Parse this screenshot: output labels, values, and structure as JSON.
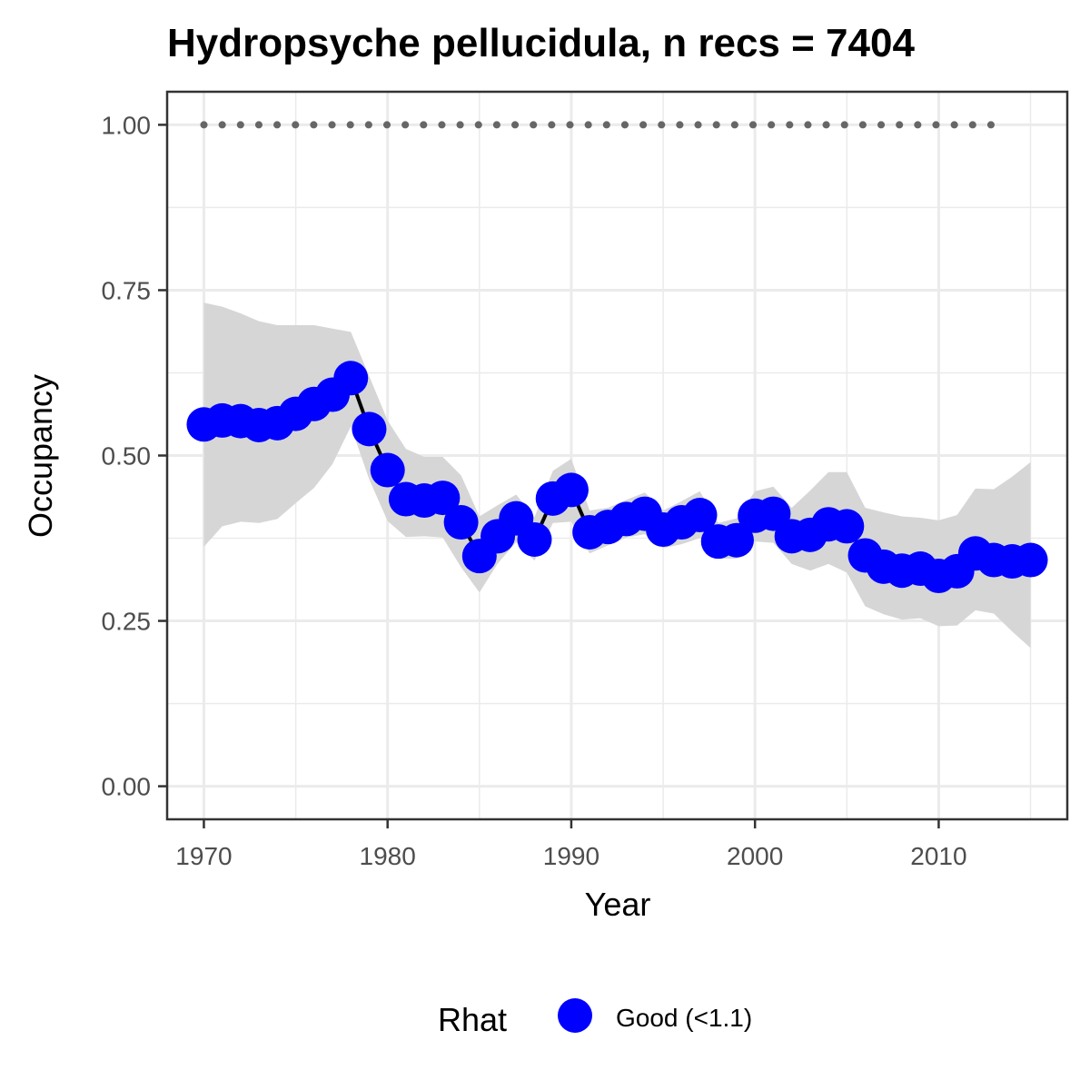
{
  "chart_data": {
    "type": "line",
    "title": "Hydropsyche pellucidula, n recs = 7404",
    "xlabel": "Year",
    "ylabel": "Occupancy",
    "xlim": [
      1968,
      2017
    ],
    "ylim": [
      -0.05,
      1.05
    ],
    "x_ticks": [
      1970,
      1980,
      1990,
      2000,
      2010
    ],
    "x_tick_labels": [
      "1970",
      "1980",
      "1990",
      "2000",
      "2010"
    ],
    "x_minor_ticks": [
      1975,
      1985,
      1995,
      2005,
      2015
    ],
    "y_ticks": [
      0.0,
      0.25,
      0.5,
      0.75,
      1.0
    ],
    "y_tick_labels": [
      "0.00",
      "0.25",
      "0.50",
      "0.75",
      "1.00"
    ],
    "y_minor_ticks": [
      0.125,
      0.375,
      0.625,
      0.875
    ],
    "grid": true,
    "legend": {
      "title": "Rhat",
      "position": "bottom",
      "entries": [
        {
          "label": "Good (<1.1)",
          "color": "#0000ff"
        }
      ]
    },
    "colors": {
      "points": "#0000ff",
      "line": "#000000",
      "ribbon": "#d6d6d6",
      "dotted_line": "#666666",
      "grid": "#ebebeb",
      "panel_border": "#333333"
    },
    "series": [
      {
        "x": [
          1970,
          1971,
          1972,
          1973,
          1974,
          1975,
          1976,
          1977,
          1978,
          1979,
          1980,
          1981,
          1982,
          1983,
          1984,
          1985,
          1986,
          1987,
          1988,
          1989,
          1990,
          1991,
          1992,
          1993,
          1994,
          1995,
          1996,
          1997,
          1998,
          1999,
          2000,
          2001,
          2002,
          2003,
          2004,
          2005,
          2006,
          2007,
          2008,
          2009,
          2010,
          2011,
          2012,
          2013,
          2014,
          2015
        ],
        "y": [
          0.547,
          0.553,
          0.552,
          0.546,
          0.549,
          0.563,
          0.578,
          0.592,
          0.617,
          0.54,
          0.478,
          0.434,
          0.432,
          0.436,
          0.399,
          0.348,
          0.378,
          0.405,
          0.373,
          0.435,
          0.448,
          0.384,
          0.392,
          0.404,
          0.412,
          0.388,
          0.399,
          0.41,
          0.37,
          0.372,
          0.409,
          0.412,
          0.378,
          0.38,
          0.396,
          0.393,
          0.349,
          0.332,
          0.326,
          0.329,
          0.318,
          0.325,
          0.352,
          0.342,
          0.34,
          0.342
        ],
        "lower": [
          0.362,
          0.393,
          0.4,
          0.398,
          0.404,
          0.428,
          0.451,
          0.487,
          0.544,
          0.464,
          0.401,
          0.377,
          0.378,
          0.376,
          0.331,
          0.293,
          0.337,
          0.369,
          0.341,
          0.398,
          0.4,
          0.352,
          0.364,
          0.376,
          0.381,
          0.36,
          0.366,
          0.375,
          0.344,
          0.344,
          0.37,
          0.368,
          0.336,
          0.326,
          0.336,
          0.323,
          0.272,
          0.26,
          0.252,
          0.254,
          0.242,
          0.243,
          0.266,
          0.261,
          0.234,
          0.209
        ],
        "upper": [
          0.731,
          0.725,
          0.715,
          0.703,
          0.697,
          0.697,
          0.697,
          0.692,
          0.687,
          0.62,
          0.553,
          0.51,
          0.498,
          0.498,
          0.47,
          0.408,
          0.425,
          0.441,
          0.407,
          0.477,
          0.495,
          0.417,
          0.421,
          0.433,
          0.444,
          0.417,
          0.431,
          0.446,
          0.398,
          0.405,
          0.446,
          0.453,
          0.421,
          0.447,
          0.475,
          0.475,
          0.421,
          0.414,
          0.408,
          0.406,
          0.402,
          0.41,
          0.45,
          0.449,
          0.468,
          0.49
        ]
      }
    ],
    "reference_line": {
      "y": 1.0,
      "x_start": 1970,
      "x_end": 2013
    }
  }
}
